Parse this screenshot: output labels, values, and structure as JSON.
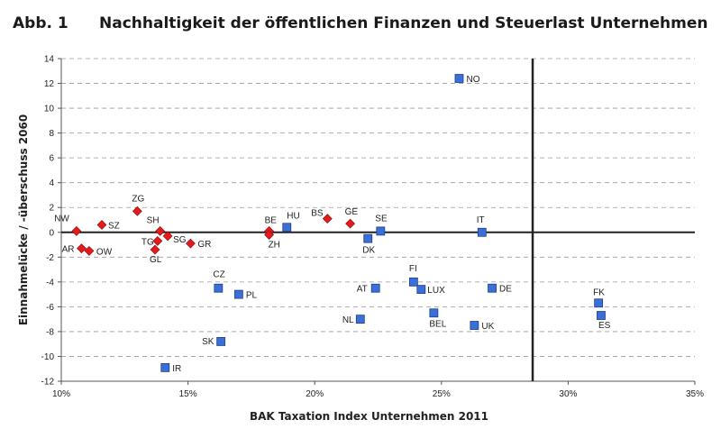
{
  "header": {
    "figure_label": "Abb. 1",
    "title": "Nachhaltigkeit der öffentlichen Finanzen und Steuerlast Unternehmen"
  },
  "chart_data": {
    "type": "scatter",
    "title": "Nachhaltigkeit der öffentlichen Finanzen und Steuerlast Unternehmen",
    "xlabel": "BAK Taxation Index Unternehmen 2011",
    "ylabel": "Einnahmelücke / -überschuss 2060",
    "xlim": [
      10,
      35
    ],
    "ylim": [
      -12,
      14
    ],
    "x_ticks": [
      "10%",
      "15%",
      "20%",
      "25%",
      "30%",
      "35%"
    ],
    "y_ticks": [
      "14",
      "12",
      "10",
      "8",
      "6",
      "4",
      "2",
      "0",
      "-2",
      "-4",
      "-6",
      "-8",
      "-10",
      "-12"
    ],
    "x_tick_values": [
      10,
      15,
      20,
      25,
      30,
      35
    ],
    "y_tick_values": [
      14,
      12,
      10,
      8,
      6,
      4,
      2,
      0,
      -2,
      -4,
      -6,
      -8,
      -10,
      -12
    ],
    "grid": "horizontal dashed",
    "reference_lines": {
      "x": 28.6,
      "y": 0
    },
    "series": [
      {
        "marker": "diamond",
        "color": "#e8191a",
        "points": [
          {
            "label": "NW",
            "x": 10.6,
            "y": 0.1
          },
          {
            "label": "SZ",
            "x": 11.6,
            "y": 0.6
          },
          {
            "label": "ZG",
            "x": 13.0,
            "y": 1.7
          },
          {
            "label": "AR",
            "x": 10.8,
            "y": -1.3
          },
          {
            "label": "OW",
            "x": 11.1,
            "y": -1.5
          },
          {
            "label": "SH",
            "x": 13.9,
            "y": 0.1
          },
          {
            "label": "TG",
            "x": 13.8,
            "y": -0.7
          },
          {
            "label": "SG",
            "x": 14.2,
            "y": -0.3
          },
          {
            "label": "GL",
            "x": 13.7,
            "y": -1.4
          },
          {
            "label": "GR",
            "x": 15.1,
            "y": -0.9
          },
          {
            "label": "BE",
            "x": 18.2,
            "y": 0.1
          },
          {
            "label": "ZH",
            "x": 18.2,
            "y": -0.2
          },
          {
            "label": "BS",
            "x": 20.5,
            "y": 1.1
          },
          {
            "label": "GE",
            "x": 21.4,
            "y": 0.7
          }
        ]
      },
      {
        "marker": "square",
        "color": "#3a6fd8",
        "points": [
          {
            "label": "NO",
            "x": 25.7,
            "y": 12.4
          },
          {
            "label": "HU",
            "x": 18.9,
            "y": 0.4
          },
          {
            "label": "SE",
            "x": 22.6,
            "y": 0.1
          },
          {
            "label": "DK",
            "x": 22.1,
            "y": -0.5
          },
          {
            "label": "IT",
            "x": 26.6,
            "y": 0.0
          },
          {
            "label": "CZ",
            "x": 16.2,
            "y": -4.5
          },
          {
            "label": "PL",
            "x": 17.0,
            "y": -5.0
          },
          {
            "label": "FI",
            "x": 23.9,
            "y": -4.0
          },
          {
            "label": "AT",
            "x": 22.4,
            "y": -4.5
          },
          {
            "label": "LUX",
            "x": 24.2,
            "y": -4.6
          },
          {
            "label": "DE",
            "x": 27.0,
            "y": -4.5
          },
          {
            "label": "FK",
            "x": 31.2,
            "y": -5.7
          },
          {
            "label": "ES",
            "x": 31.3,
            "y": -6.7
          },
          {
            "label": "BEL",
            "x": 24.7,
            "y": -6.5
          },
          {
            "label": "NL",
            "x": 21.8,
            "y": -7.0
          },
          {
            "label": "UK",
            "x": 26.3,
            "y": -7.5
          },
          {
            "label": "SK",
            "x": 16.3,
            "y": -8.8
          },
          {
            "label": "IR",
            "x": 14.1,
            "y": -10.9
          }
        ]
      }
    ]
  }
}
